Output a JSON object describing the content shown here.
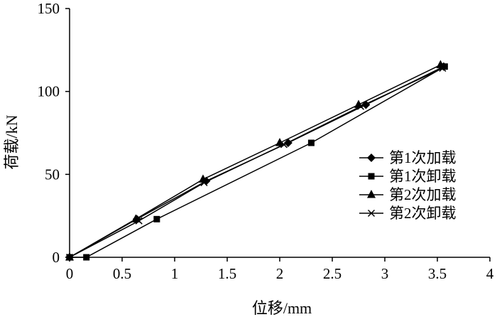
{
  "chart_data": {
    "type": "line",
    "title": "",
    "xlabel": "位移/mm",
    "ylabel": "荷载/kN",
    "xlim": [
      0,
      4
    ],
    "ylim": [
      0,
      150
    ],
    "xticks": [
      "0",
      "0.5",
      "1",
      "1.5",
      "2",
      "2.5",
      "3",
      "3.5",
      "4"
    ],
    "yticks": [
      "0",
      "50",
      "100",
      "150"
    ],
    "grid": false,
    "legend_position": "right",
    "series": [
      {
        "name": "第1次加载",
        "marker": "diamond",
        "x": [
          0,
          0.64,
          1.3,
          2.08,
          2.82,
          3.56
        ],
        "y": [
          0,
          23,
          46,
          69,
          92,
          115
        ]
      },
      {
        "name": "第1次卸载",
        "marker": "square",
        "x": [
          3.57,
          2.3,
          0.83,
          0.16,
          0
        ],
        "y": [
          115,
          69,
          23,
          0,
          0
        ]
      },
      {
        "name": "第2次加载",
        "marker": "triangle",
        "x": [
          0,
          0.63,
          1.27,
          2.0,
          2.75,
          3.53
        ],
        "y": [
          0,
          23,
          47,
          69,
          92,
          116
        ]
      },
      {
        "name": "第2次卸载",
        "marker": "x",
        "x": [
          3.55,
          2.77,
          2.04,
          1.28,
          0.66,
          0
        ],
        "y": [
          114,
          91,
          68,
          45,
          22,
          0
        ]
      }
    ]
  }
}
